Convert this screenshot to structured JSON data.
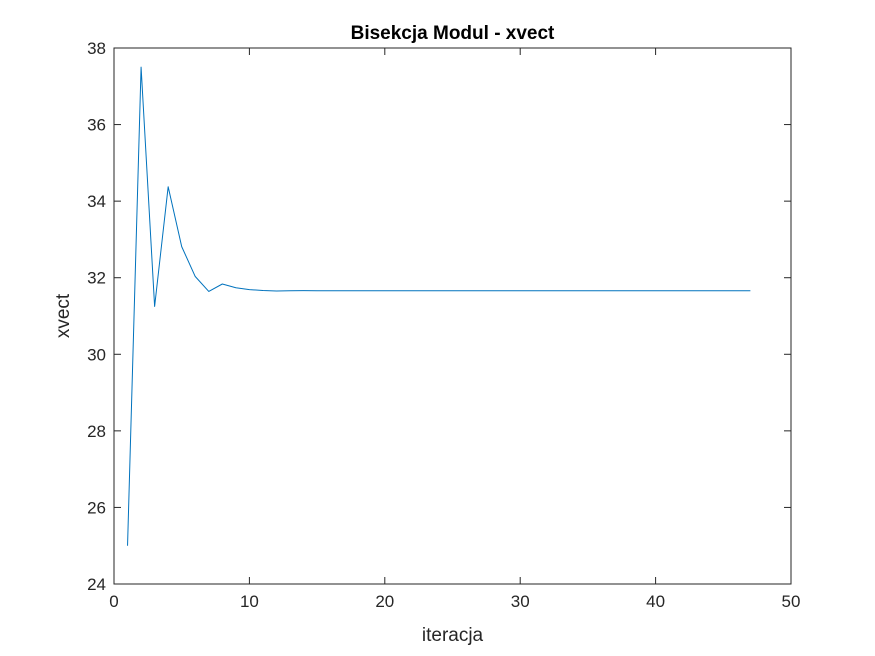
{
  "chart_data": {
    "type": "line",
    "title": "Bisekcja Modul - xvect",
    "xlabel": "iteracja",
    "ylabel": "xvect",
    "xlim": [
      0,
      50
    ],
    "ylim": [
      24,
      38
    ],
    "xticks": [
      0,
      10,
      20,
      30,
      40,
      50
    ],
    "yticks": [
      24,
      26,
      28,
      30,
      32,
      34,
      36,
      38
    ],
    "xtick_labels": [
      "0",
      "10",
      "20",
      "30",
      "40",
      "50"
    ],
    "ytick_labels": [
      "24",
      "26",
      "28",
      "30",
      "32",
      "34",
      "36",
      "38"
    ],
    "grid": false,
    "legend": "none",
    "line_color": "#0072BD",
    "series": [
      {
        "x": [
          1,
          2,
          3,
          4,
          5,
          6,
          7,
          8,
          9,
          10,
          11,
          12,
          13,
          14,
          15,
          16,
          17,
          18,
          19,
          20,
          21,
          22,
          23,
          24,
          25,
          26,
          27,
          28,
          29,
          30,
          31,
          32,
          33,
          34,
          35,
          36,
          37,
          38,
          39,
          40,
          41,
          42,
          43,
          44,
          45,
          46,
          47
        ],
        "values": [
          25.0,
          37.5,
          31.25,
          34.375,
          32.8125,
          32.03125,
          31.640625,
          31.8359375,
          31.73828125,
          31.689453125,
          31.6650390625,
          31.65283203125,
          31.658935546875,
          31.6619873046875,
          31.66046142578125,
          31.66,
          31.66,
          31.66,
          31.66,
          31.66,
          31.66,
          31.66,
          31.66,
          31.66,
          31.66,
          31.66,
          31.66,
          31.66,
          31.66,
          31.66,
          31.66,
          31.66,
          31.66,
          31.66,
          31.66,
          31.66,
          31.66,
          31.66,
          31.66,
          31.66,
          31.66,
          31.66,
          31.66,
          31.66,
          31.66,
          31.66,
          31.66
        ]
      }
    ]
  }
}
